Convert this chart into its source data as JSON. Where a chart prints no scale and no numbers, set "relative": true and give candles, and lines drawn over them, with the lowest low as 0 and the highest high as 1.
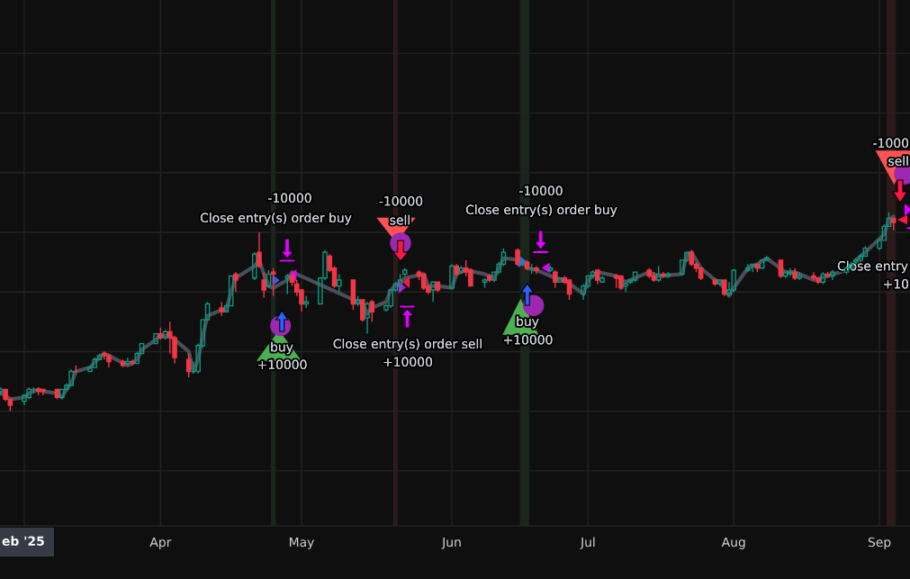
{
  "chart_data": {
    "type": "candlestick",
    "relative": true,
    "x": [
      "2025-02-26",
      "2025-02-27",
      "2025-02-28",
      "2025-03-03",
      "2025-03-04",
      "2025-03-05",
      "2025-03-06",
      "2025-03-07",
      "2025-03-10",
      "2025-03-11",
      "2025-03-12",
      "2025-03-13",
      "2025-03-14",
      "2025-03-17",
      "2025-03-18",
      "2025-03-19",
      "2025-03-20",
      "2025-03-21",
      "2025-03-24",
      "2025-03-25",
      "2025-03-26",
      "2025-03-27",
      "2025-03-28",
      "2025-03-31",
      "2025-04-01",
      "2025-04-02",
      "2025-04-03",
      "2025-04-04",
      "2025-04-07",
      "2025-04-08",
      "2025-04-09",
      "2025-04-10",
      "2025-04-11",
      "2025-04-14",
      "2025-04-15",
      "2025-04-16",
      "2025-04-17",
      "2025-04-21",
      "2025-04-22",
      "2025-04-23",
      "2025-04-24",
      "2025-04-25",
      "2025-04-28",
      "2025-04-29",
      "2025-04-30",
      "2025-05-01",
      "2025-05-02",
      "2025-05-05",
      "2025-05-06",
      "2025-05-07",
      "2025-05-08",
      "2025-05-09",
      "2025-05-12",
      "2025-05-13",
      "2025-05-14",
      "2025-05-15",
      "2025-05-16",
      "2025-05-19",
      "2025-05-20",
      "2025-05-21",
      "2025-05-22",
      "2025-05-23",
      "2025-05-26",
      "2025-05-27",
      "2025-05-28",
      "2025-05-29",
      "2025-05-30",
      "2025-06-02",
      "2025-06-03",
      "2025-06-04",
      "2025-06-05",
      "2025-06-06",
      "2025-06-09",
      "2025-06-10",
      "2025-06-11",
      "2025-06-12",
      "2025-06-13",
      "2025-06-16",
      "2025-06-17",
      "2025-06-18",
      "2025-06-19",
      "2025-06-20",
      "2025-06-23",
      "2025-06-24",
      "2025-06-25",
      "2025-06-26",
      "2025-06-27",
      "2025-06-30",
      "2025-07-01",
      "2025-07-02",
      "2025-07-03",
      "2025-07-04",
      "2025-07-07",
      "2025-07-08",
      "2025-07-09",
      "2025-07-10",
      "2025-07-11",
      "2025-07-14",
      "2025-07-15",
      "2025-07-16",
      "2025-07-17",
      "2025-07-18",
      "2025-07-21",
      "2025-07-22",
      "2025-07-23",
      "2025-07-24",
      "2025-07-25",
      "2025-07-28",
      "2025-07-29",
      "2025-07-30",
      "2025-07-31",
      "2025-08-01",
      "2025-08-04",
      "2025-08-05",
      "2025-08-06",
      "2025-08-07",
      "2025-08-08",
      "2025-08-11",
      "2025-08-12",
      "2025-08-13",
      "2025-08-14",
      "2025-08-15",
      "2025-08-18",
      "2025-08-19",
      "2025-08-20",
      "2025-08-21",
      "2025-08-22",
      "2025-08-25",
      "2025-08-26",
      "2025-08-27",
      "2025-08-28",
      "2025-08-29",
      "2025-09-01",
      "2025-09-02",
      "2025-09-03",
      "2025-09-04"
    ],
    "ohlc": [
      [
        0.1,
        0.12,
        0.08,
        0.11
      ],
      [
        0.11,
        0.11,
        0.05,
        0.06
      ],
      [
        0.06,
        0.06,
        0,
        0.03
      ],
      [
        0.05,
        0.08,
        0.03,
        0.08
      ],
      [
        0.07,
        0.12,
        0.06,
        0.11
      ],
      [
        0.11,
        0.12,
        0.09,
        0.11
      ],
      [
        0.11,
        0.12,
        0.08,
        0.1
      ],
      [
        0.11,
        0.11,
        0.08,
        0.1
      ],
      [
        0.11,
        0.11,
        0.06,
        0.07
      ],
      [
        0.07,
        0.11,
        0.06,
        0.11
      ],
      [
        0.11,
        0.14,
        0.1,
        0.13
      ],
      [
        0.13,
        0.21,
        0.13,
        0.2
      ],
      [
        0.2,
        0.23,
        0.19,
        0.2
      ],
      [
        0.2,
        0.23,
        0.2,
        0.22
      ],
      [
        0.22,
        0.27,
        0.22,
        0.26
      ],
      [
        0.26,
        0.29,
        0.26,
        0.28
      ],
      [
        0.29,
        0.3,
        0.26,
        0.28
      ],
      [
        0.28,
        0.29,
        0.22,
        0.25
      ],
      [
        0.25,
        0.26,
        0.22,
        0.23
      ],
      [
        0.24,
        0.27,
        0.23,
        0.25
      ],
      [
        0.25,
        0.26,
        0.23,
        0.24
      ],
      [
        0.24,
        0.3,
        0.24,
        0.29
      ],
      [
        0.29,
        0.34,
        0.29,
        0.34
      ],
      [
        0.34,
        0.39,
        0.34,
        0.39
      ],
      [
        0.39,
        0.42,
        0.36,
        0.37
      ],
      [
        0.37,
        0.41,
        0.36,
        0.4
      ],
      [
        0.4,
        0.45,
        0.29,
        0.37
      ],
      [
        0.37,
        0.38,
        0.24,
        0.27
      ],
      [
        0.26,
        0.29,
        0.17,
        0.2
      ],
      [
        0.2,
        0.25,
        0.19,
        0.2
      ],
      [
        0.2,
        0.34,
        0.19,
        0.33
      ],
      [
        0.33,
        0.46,
        0.32,
        0.46
      ],
      [
        0.46,
        0.55,
        0.46,
        0.54
      ],
      [
        0.52,
        0.55,
        0.48,
        0.5
      ],
      [
        0.5,
        0.54,
        0.5,
        0.53
      ],
      [
        0.53,
        0.68,
        0.53,
        0.68
      ],
      [
        0.69,
        0.7,
        0.6,
        0.66
      ],
      [
        0.67,
        0.8,
        0.66,
        0.79
      ],
      [
        0.8,
        0.9,
        0.72,
        0.73
      ],
      [
        0.66,
        0.7,
        0.57,
        0.61
      ],
      [
        0.63,
        0.71,
        0.62,
        0.69
      ],
      [
        0.7,
        0.72,
        0.58,
        0.69
      ],
      [
        0.67,
        0.69,
        0.59,
        0.68
      ],
      [
        0.68,
        0.7,
        0.63,
        0.65
      ],
      [
        0.64,
        0.66,
        0.58,
        0.6
      ],
      [
        0.61,
        0.61,
        0.5,
        0.54
      ],
      [
        0.54,
        0.58,
        0.52,
        0.55
      ],
      [
        0.54,
        0.67,
        0.54,
        0.67
      ],
      [
        0.67,
        0.81,
        0.66,
        0.8
      ],
      [
        0.78,
        0.79,
        0.7,
        0.71
      ],
      [
        0.72,
        0.73,
        0.62,
        0.63
      ],
      [
        0.63,
        0.69,
        0.6,
        0.66
      ],
      [
        0.66,
        0.66,
        0.51,
        0.54
      ],
      [
        0.54,
        0.58,
        0.53,
        0.56
      ],
      [
        0.56,
        0.56,
        0.45,
        0.46
      ],
      [
        0.47,
        0.55,
        0.39,
        0.54
      ],
      [
        0.55,
        0.56,
        0.45,
        0.5
      ],
      [
        0.51,
        0.54,
        0.5,
        0.53
      ],
      [
        0.53,
        0.61,
        0.52,
        0.61
      ],
      [
        0.61,
        0.65,
        0.6,
        0.64
      ],
      [
        0.63,
        0.69,
        0.6,
        0.66
      ],
      [
        0.69,
        0.72,
        0.68,
        0.71
      ],
      [
        0.7,
        0.71,
        0.66,
        0.68
      ],
      [
        0.69,
        0.69,
        0.61,
        0.62
      ],
      [
        0.63,
        0.64,
        0.59,
        0.6
      ],
      [
        0.61,
        0.65,
        0.55,
        0.65
      ],
      [
        0.65,
        0.65,
        0.6,
        0.61
      ],
      [
        0.62,
        0.74,
        0.62,
        0.73
      ],
      [
        0.73,
        0.74,
        0.68,
        0.69
      ],
      [
        0.7,
        0.73,
        0.69,
        0.72
      ],
      [
        0.72,
        0.76,
        0.68,
        0.7
      ],
      [
        0.71,
        0.72,
        0.63,
        0.63
      ],
      [
        0.65,
        0.67,
        0.62,
        0.66
      ],
      [
        0.68,
        0.69,
        0.65,
        0.66
      ],
      [
        0.66,
        0.7,
        0.65,
        0.7
      ],
      [
        0.7,
        0.75,
        0.69,
        0.74
      ],
      [
        0.74,
        0.82,
        0.73,
        0.8
      ],
      [
        0.81,
        0.82,
        0.73,
        0.74
      ],
      [
        0.74,
        0.77,
        0.73,
        0.75
      ],
      [
        0.75,
        0.76,
        0.71,
        0.72
      ],
      [
        0.72,
        0.74,
        0.69,
        0.72
      ],
      [
        0.72,
        0.73,
        0.69,
        0.71
      ],
      [
        0.71,
        0.73,
        0.7,
        0.72
      ],
      [
        0.7,
        0.71,
        0.62,
        0.65
      ],
      [
        0.65,
        0.67,
        0.65,
        0.67
      ],
      [
        0.67,
        0.68,
        0.64,
        0.65
      ],
      [
        0.66,
        0.66,
        0.56,
        0.59
      ],
      [
        0.59,
        0.64,
        0.56,
        0.63
      ],
      [
        0.63,
        0.68,
        0.62,
        0.68
      ],
      [
        0.68,
        0.71,
        0.67,
        0.7
      ],
      [
        0.71,
        0.71,
        0.64,
        0.66
      ],
      [
        0.65,
        0.68,
        0.65,
        0.67
      ],
      [
        0.68,
        0.69,
        0.62,
        0.67
      ],
      [
        0.68,
        0.68,
        0.61,
        0.62
      ],
      [
        0.63,
        0.65,
        0.6,
        0.64
      ],
      [
        0.65,
        0.66,
        0.64,
        0.66
      ],
      [
        0.66,
        0.7,
        0.65,
        0.7
      ],
      [
        0.71,
        0.72,
        0.67,
        0.68
      ],
      [
        0.68,
        0.7,
        0.65,
        0.66
      ],
      [
        0.66,
        0.73,
        0.65,
        0.69
      ],
      [
        0.69,
        0.7,
        0.67,
        0.68
      ],
      [
        0.68,
        0.7,
        0.67,
        0.69
      ],
      [
        0.69,
        0.76,
        0.69,
        0.76
      ],
      [
        0.76,
        0.8,
        0.75,
        0.8
      ],
      [
        0.8,
        0.81,
        0.73,
        0.74
      ],
      [
        0.74,
        0.75,
        0.7,
        0.72
      ],
      [
        0.72,
        0.72,
        0.66,
        0.67
      ],
      [
        0.66,
        0.67,
        0.63,
        0.64
      ],
      [
        0.64,
        0.66,
        0.63,
        0.66
      ],
      [
        0.66,
        0.66,
        0.58,
        0.59
      ],
      [
        0.59,
        0.65,
        0.58,
        0.61
      ],
      [
        0.61,
        0.71,
        0.6,
        0.71
      ],
      [
        0.71,
        0.74,
        0.7,
        0.72
      ],
      [
        0.73,
        0.74,
        0.7,
        0.74
      ],
      [
        0.74,
        0.74,
        0.7,
        0.72
      ],
      [
        0.72,
        0.76,
        0.72,
        0.76
      ],
      [
        0.76,
        0.78,
        0.76,
        0.77
      ],
      [
        0.76,
        0.76,
        0.67,
        0.68
      ],
      [
        0.68,
        0.7,
        0.67,
        0.7
      ],
      [
        0.69,
        0.72,
        0.68,
        0.7
      ],
      [
        0.7,
        0.72,
        0.66,
        0.67
      ],
      [
        0.67,
        0.7,
        0.66,
        0.68
      ],
      [
        0.68,
        0.7,
        0.66,
        0.67
      ],
      [
        0.67,
        0.67,
        0.64,
        0.65
      ],
      [
        0.65,
        0.7,
        0.64,
        0.69
      ],
      [
        0.69,
        0.7,
        0.67,
        0.68
      ],
      [
        0.68,
        0.71,
        0.66,
        0.7
      ],
      [
        0.7,
        0.73,
        0.69,
        0.72
      ],
      [
        0.72,
        0.75,
        0.71,
        0.74
      ],
      [
        0.75,
        0.77,
        0.74,
        0.76
      ],
      [
        0.76,
        0.79,
        0.75,
        0.78
      ],
      [
        0.78,
        0.83,
        0.78,
        0.82
      ],
      [
        0.82,
        0.87,
        0.81,
        0.86
      ],
      [
        0.86,
        0.94,
        0.86,
        0.93
      ],
      [
        0.93,
        1.0,
        0.93,
        0.97
      ],
      [
        0.97,
        0.97,
        0.91,
        0.95
      ]
    ],
    "colors": [
      "#089981",
      "#f23645",
      "#f23645",
      "#089981",
      "#089981",
      "#089981",
      "#f23645",
      "#f23645",
      "#f23645",
      "#089981",
      "#089981",
      "#089981",
      "#f23645",
      "#089981",
      "#089981",
      "#089981",
      "#f23645",
      "#f23645",
      "#f23645",
      "#089981",
      "#f23645",
      "#089981",
      "#089981",
      "#089981",
      "#f23645",
      "#089981",
      "#f23645",
      "#f23645",
      "#f23645",
      "#089981",
      "#089981",
      "#089981",
      "#089981",
      "#f23645",
      "#089981",
      "#089981",
      "#f23645",
      "#089981",
      "#f23645",
      "#f23645",
      "#089981",
      "#f23645",
      "#089981",
      "#f23645",
      "#f23645",
      "#f23645",
      "#089981",
      "#089981",
      "#089981",
      "#f23645",
      "#f23645",
      "#089981",
      "#f23645",
      "#089981",
      "#f23645",
      "#089981",
      "#f23645",
      "#089981",
      "#089981",
      "#089981",
      "#089981",
      "#089981",
      "#f23645",
      "#f23645",
      "#f23645",
      "#089981",
      "#f23645",
      "#089981",
      "#f23645",
      "#089981",
      "#f23645",
      "#f23645",
      "#089981",
      "#f23645",
      "#089981",
      "#089981",
      "#089981",
      "#f23645",
      "#089981",
      "#f23645",
      "#089981",
      "#f23645",
      "#089981",
      "#f23645",
      "#089981",
      "#f23645",
      "#f23645",
      "#089981",
      "#089981",
      "#089981",
      "#f23645",
      "#089981",
      "#f23645",
      "#f23645",
      "#089981",
      "#089981",
      "#089981",
      "#f23645",
      "#f23645",
      "#089981",
      "#f23645",
      "#089981",
      "#089981",
      "#089981",
      "#f23645",
      "#f23645",
      "#f23645",
      "#f23645",
      "#089981",
      "#f23645",
      "#089981",
      "#089981",
      "#089981",
      "#089981",
      "#f23645",
      "#089981",
      "#089981",
      "#f23645",
      "#089981",
      "#089981",
      "#f23645",
      "#089981",
      "#f23645",
      "#f23645",
      "#089981",
      "#f23645",
      "#089981",
      "#089981",
      "#089981",
      "#089981",
      "#089981",
      "#089981",
      "#089981",
      "#089981",
      "#089981",
      "#f23645"
    ],
    "series": [
      {
        "type": "line",
        "color": "#4a4e59",
        "x": [
          "2025-02-26",
          "2025-02-27",
          "2025-02-28",
          "2025-03-03",
          "2025-03-04",
          "2025-03-06",
          "2025-03-07",
          "2025-03-10",
          "2025-03-11",
          "2025-03-12",
          "2025-03-13",
          "2025-03-14",
          "2025-03-17",
          "2025-03-19",
          "2025-03-20",
          "2025-03-21",
          "2025-03-25",
          "2025-03-26",
          "2025-03-27",
          "2025-03-28",
          "2025-03-31",
          "2025-04-01",
          "2025-04-02",
          "2025-04-03",
          "2025-04-04",
          "2025-04-07",
          "2025-04-08",
          "2025-04-09",
          "2025-04-10",
          "2025-04-11",
          "2025-04-14",
          "2025-04-15",
          "2025-04-16",
          "2025-04-17",
          "2025-04-21",
          "2025-04-22",
          "2025-04-23",
          "2025-04-24",
          "2025-04-25",
          "2025-04-28",
          "2025-04-29",
          "2025-05-14",
          "2025-05-15",
          "2025-05-16",
          "2025-05-19",
          "2025-05-20",
          "2025-05-21",
          "2025-05-22",
          "2025-05-23",
          "2025-05-27",
          "2025-05-28",
          "2025-05-30",
          "2025-06-02",
          "2025-06-03",
          "2025-06-05",
          "2025-06-09",
          "2025-06-11",
          "2025-06-13",
          "2025-06-17",
          "2025-06-18",
          "2025-06-20",
          "2025-06-24",
          "2025-06-26",
          "2025-06-30",
          "2025-07-01",
          "2025-07-03",
          "2025-07-07",
          "2025-07-09",
          "2025-07-14",
          "2025-07-16",
          "2025-07-21",
          "2025-07-22",
          "2025-07-23",
          "2025-07-25",
          "2025-07-28",
          "2025-07-29",
          "2025-07-31",
          "2025-08-01",
          "2025-08-04",
          "2025-08-06",
          "2025-08-08",
          "2025-08-12",
          "2025-08-14",
          "2025-08-18",
          "2025-08-21",
          "2025-08-25",
          "2025-08-27",
          "2025-08-29",
          "2025-09-02",
          "2025-09-03",
          "2025-09-04"
        ],
        "values": [
          0.09,
          0.08,
          0.06,
          0.07,
          0.09,
          0.11,
          0.1,
          0.09,
          0.07,
          0.11,
          0.14,
          0.2,
          0.22,
          0.27,
          0.29,
          0.28,
          0.23,
          0.24,
          0.26,
          0.31,
          0.36,
          0.38,
          0.38,
          0.38,
          0.36,
          0.3,
          0.2,
          0.26,
          0.38,
          0.48,
          0.51,
          0.51,
          0.6,
          0.67,
          0.73,
          0.76,
          0.69,
          0.63,
          0.62,
          0.66,
          0.7,
          0.54,
          0.49,
          0.52,
          0.55,
          0.61,
          0.63,
          0.65,
          0.67,
          0.69,
          0.63,
          0.63,
          0.62,
          0.69,
          0.71,
          0.69,
          0.67,
          0.77,
          0.76,
          0.72,
          0.71,
          0.67,
          0.66,
          0.59,
          0.66,
          0.7,
          0.68,
          0.65,
          0.7,
          0.68,
          0.69,
          0.79,
          0.8,
          0.72,
          0.66,
          0.65,
          0.58,
          0.62,
          0.72,
          0.74,
          0.77,
          0.7,
          0.7,
          0.66,
          0.68,
          0.71,
          0.76,
          0.8,
          0.89,
          0.96,
          0.98
        ]
      }
    ],
    "xlim": [
      "2025-02-25T20:00",
      "2025-09-07T12:00"
    ],
    "xticks": [
      {
        "value": "2025-03-03",
        "label": null
      },
      {
        "value": "2025-04-01",
        "label": "Apr"
      },
      {
        "value": "2025-05-01",
        "label": "May"
      },
      {
        "value": "2025-06-02",
        "label": "Jun"
      },
      {
        "value": "2025-07-01",
        "label": "Jul"
      },
      {
        "value": "2025-08-01",
        "label": "Aug"
      },
      {
        "value": "2025-09-01",
        "label": "Sep"
      }
    ],
    "tick_labels": "x",
    "grid": true,
    "bands": [
      {
        "axis": "x",
        "from": "2025-04-24T12:00",
        "to": "2025-04-25T12:00",
        "color": "#18261b"
      },
      {
        "axis": "x",
        "from": "2025-05-20T12:00",
        "to": "2025-05-21T12:00",
        "color": "#2c1a1b"
      },
      {
        "axis": "x",
        "from": "2025-06-16T12:00",
        "to": "2025-06-18T12:00",
        "color": "#18261b"
      },
      {
        "axis": "x",
        "from": "2025-09-02T12:00",
        "to": "2025-09-04T12:00",
        "color": "#2c1a1b"
      }
    ],
    "annotations": [
      "-10000",
      "Close entry(s) order buy",
      "buy",
      "+10000",
      "-10000",
      "sell",
      "Close entry(s) order sell",
      "+10000",
      "-10000",
      "Close entry(s) order buy",
      "buy",
      "+10000",
      "-1000",
      "sell",
      "Close entry",
      "+10",
      "eb '25"
    ]
  }
}
